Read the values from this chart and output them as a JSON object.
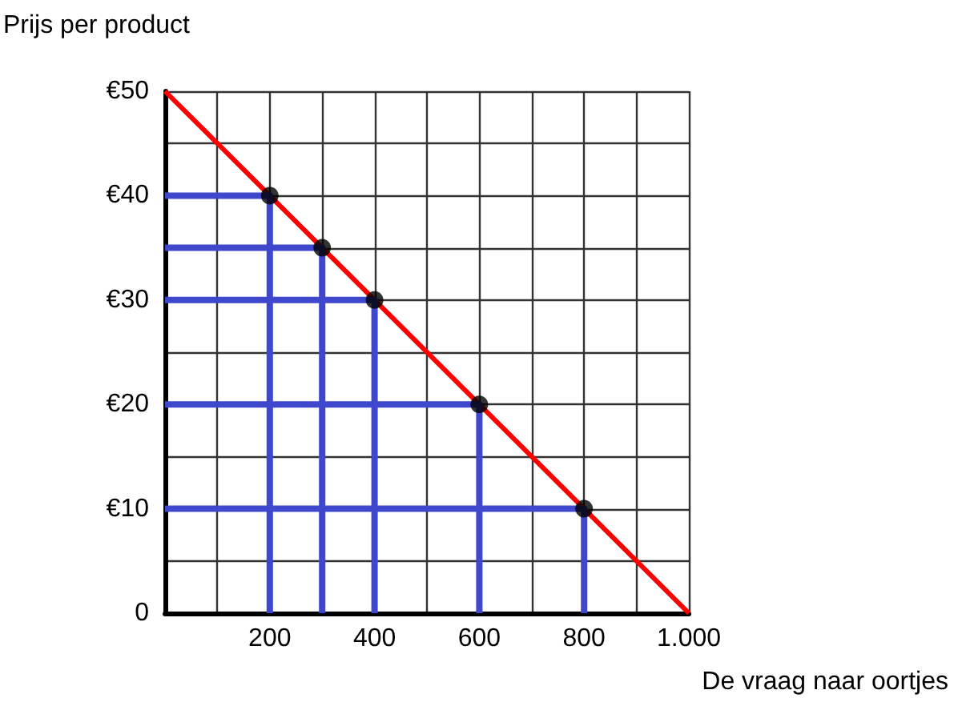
{
  "chart_data": {
    "type": "line",
    "xlabel": "De vraag naar oortjes",
    "ylabel": "Prijs per product",
    "x": [
      0,
      1000
    ],
    "series": [
      {
        "color": "#ff0000",
        "values": [
          50,
          0
        ]
      },
      {
        "type": "scatter",
        "color": "#000000",
        "x": [
          200,
          300,
          400,
          600,
          800
        ],
        "values": [
          40,
          35,
          30,
          20,
          10
        ],
        "marker": "circle"
      },
      {
        "color": "#3f48cc",
        "x": [
          0,
          200,
          200
        ],
        "values": [
          40,
          40,
          0
        ]
      },
      {
        "color": "#3f48cc",
        "x": [
          0,
          300,
          300
        ],
        "values": [
          35,
          35,
          0
        ]
      },
      {
        "color": "#3f48cc",
        "x": [
          0,
          400,
          400
        ],
        "values": [
          30,
          30,
          0
        ]
      },
      {
        "color": "#3f48cc",
        "x": [
          0,
          600,
          600
        ],
        "values": [
          20,
          20,
          0
        ]
      },
      {
        "color": "#3f48cc",
        "x": [
          0,
          800,
          800
        ],
        "values": [
          10,
          10,
          0
        ]
      }
    ],
    "xlim": [
      0,
      1000
    ],
    "xticks": [
      {
        "value": 0,
        "label": null
      },
      {
        "value": 100,
        "label": null
      },
      200,
      {
        "value": 300,
        "label": null
      },
      400,
      {
        "value": 500,
        "label": null
      },
      600,
      {
        "value": 700,
        "label": null
      },
      800,
      {
        "value": 900,
        "label": null
      },
      {
        "value": 1000,
        "label": "1.000"
      }
    ],
    "ylim": [
      0,
      50
    ],
    "yticks": [
      0,
      {
        "value": 5,
        "label": null
      },
      {
        "value": 10,
        "label": "€10"
      },
      {
        "value": 15,
        "label": null
      },
      {
        "value": 20,
        "label": "€20"
      },
      {
        "value": 25,
        "label": null
      },
      {
        "value": 30,
        "label": "€30"
      },
      {
        "value": 35,
        "label": null
      },
      {
        "value": 40,
        "label": "€40"
      },
      {
        "value": 45,
        "label": null
      },
      {
        "value": 50,
        "label": "€50"
      }
    ],
    "grid": true,
    "marker": "none",
    "line_style": "solid"
  }
}
